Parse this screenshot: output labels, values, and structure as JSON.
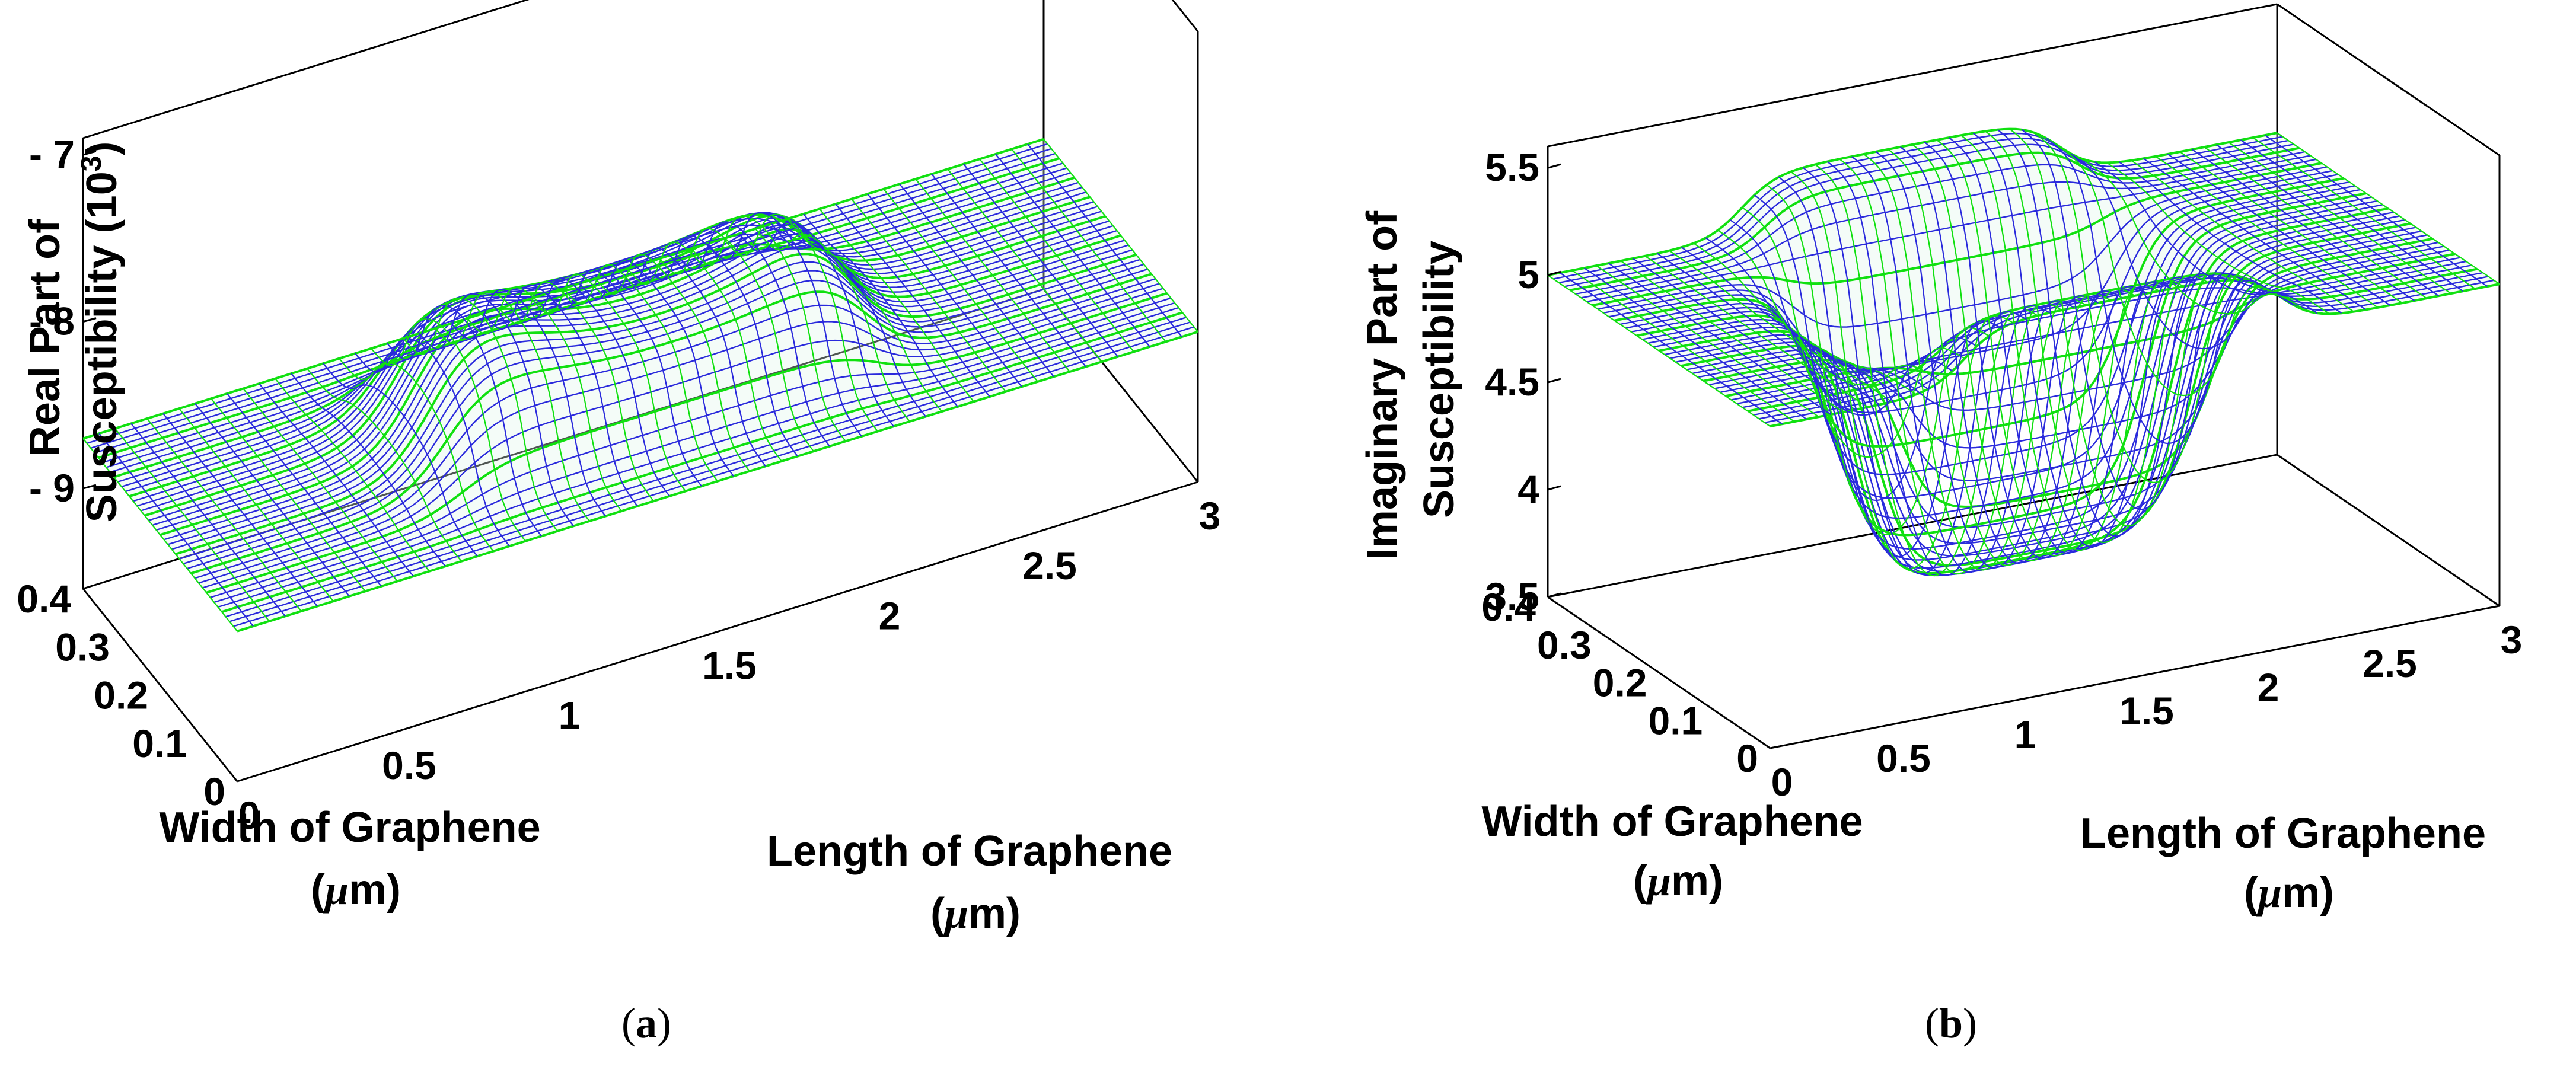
{
  "chart_data": [
    {
      "id": "a",
      "type": "surface",
      "caption": {
        "open": "(",
        "letter": "a",
        "close": ")"
      },
      "xlabel": {
        "line1": "Length of Graphene",
        "line2_pre": "(",
        "mu": "μ",
        "line2_post": "m)"
      },
      "ylabel": {
        "line1": "Width of Graphene",
        "line2_pre": "(",
        "mu": "μ",
        "line2_post": "m)"
      },
      "zlabel": {
        "line1": "Real Part of",
        "line2": "Susceptibility (10",
        "sup": "3",
        "close": ")"
      },
      "x_ticks": [
        "0",
        "0.5",
        "1",
        "1.5",
        "2",
        "2.5",
        "3"
      ],
      "y_ticks": [
        "0",
        "0.1",
        "0.2",
        "0.3",
        "0.4"
      ],
      "z_ticks": [
        "- 9",
        "- 8",
        "- 7"
      ],
      "xlim": [
        0,
        3
      ],
      "ylim": [
        0,
        0.4
      ],
      "zlim": [
        -9.6,
        -6.9
      ],
      "surface": {
        "baseline": -8.7,
        "feature_x_range": [
          0.8,
          2.1
        ],
        "feature_y_range": [
          0.08,
          0.32
        ],
        "peak_value": -7.8,
        "trough_value": -8.9,
        "mesh_color": "#2a2adc",
        "highlight_color": "#10e010"
      }
    },
    {
      "id": "b",
      "type": "surface",
      "caption": {
        "open": "(",
        "letter": "b",
        "close": ")"
      },
      "xlabel": {
        "line1": "Length of Graphene",
        "line2_pre": "(",
        "mu": "μ",
        "line2_post": "m)"
      },
      "ylabel": {
        "line1": "Width of Graphene",
        "line2_pre": "(",
        "mu": "μ",
        "line2_post": "m)"
      },
      "zlabel": {
        "line1": "Imaginary Part of",
        "line2": "Susceptibility"
      },
      "x_ticks": [
        "0",
        "0.5",
        "1",
        "1.5",
        "2",
        "2.5",
        "3"
      ],
      "y_ticks": [
        "0",
        "0.1",
        "0.2",
        "0.3",
        "0.4"
      ],
      "z_ticks": [
        "3.5",
        "4",
        "4.5",
        "5",
        "5.5"
      ],
      "xlim": [
        0,
        3
      ],
      "ylim": [
        0,
        0.4
      ],
      "zlim": [
        3.5,
        5.6
      ],
      "surface": {
        "baseline": 5.0,
        "feature_x_range": [
          0.8,
          2.1
        ],
        "feature_y_range": [
          0.08,
          0.32
        ],
        "peak_value": 5.4,
        "trough_value": 3.7,
        "mesh_color": "#2a2adc",
        "highlight_color": "#10e010"
      }
    }
  ]
}
